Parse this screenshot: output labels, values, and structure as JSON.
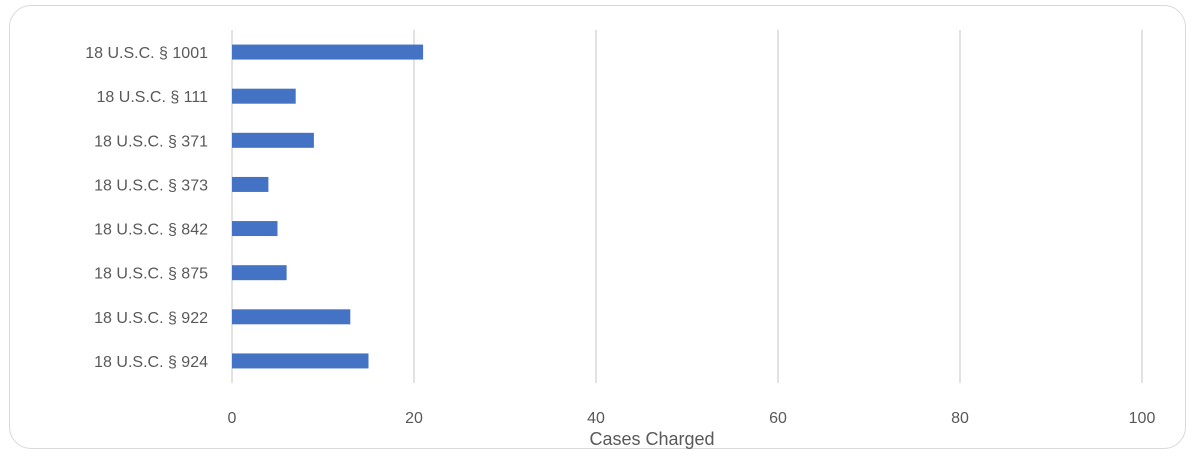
{
  "chart_data": {
    "type": "bar",
    "orientation": "horizontal",
    "title": "",
    "xlabel": "Cases Charged",
    "ylabel": "",
    "xlim": [
      0,
      100
    ],
    "xticks": [
      0,
      20,
      40,
      60,
      80,
      100
    ],
    "grid": true,
    "legend": "none",
    "categories": [
      "18 U.S.C. § 1001",
      "18 U.S.C. § 111",
      "18 U.S.C. § 371",
      "18 U.S.C. § 373",
      "18 U.S.C. § 842",
      "18 U.S.C. § 875",
      "18 U.S.C. § 922",
      "18 U.S.C. § 924"
    ],
    "values": [
      21,
      7,
      9,
      4,
      5,
      6,
      13,
      15
    ],
    "bar_color": "#4472c4",
    "grid_color": "#d9d9d9"
  }
}
